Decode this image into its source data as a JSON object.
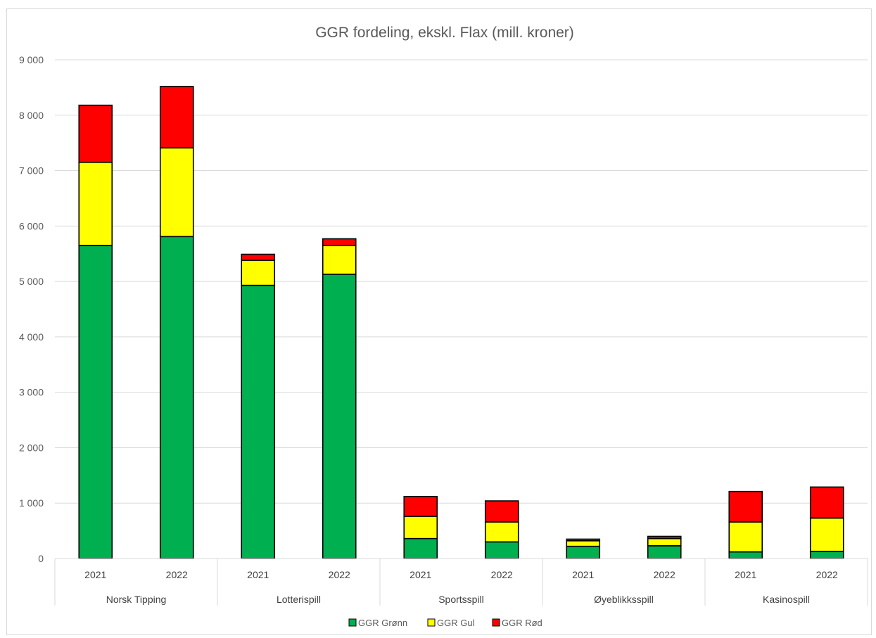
{
  "chart_data": {
    "type": "bar",
    "stacked": true,
    "title": "GGR fordeling, ekskl. Flax (mill. kroner)",
    "xlabel": "",
    "ylabel": "",
    "ylim": [
      0,
      9000
    ],
    "yticks": [
      "0",
      "1 000",
      "2 000",
      "3 000",
      "4 000",
      "5 000",
      "6 000",
      "7 000",
      "8 000",
      "9 000"
    ],
    "grid": true,
    "legend_position": "bottom",
    "groups": [
      "Norsk Tipping",
      "Lotterispill",
      "Sportsspill",
      "Øyeblikksspill",
      "Kasinospill"
    ],
    "categories": [
      "2021",
      "2022",
      "2021",
      "2022",
      "2021",
      "2022",
      "2021",
      "2022",
      "2021",
      "2022"
    ],
    "series": [
      {
        "name": "GGR Grønn",
        "color": "#00b050",
        "values": [
          5650,
          5810,
          4930,
          5130,
          360,
          300,
          220,
          230,
          120,
          130
        ]
      },
      {
        "name": "GGR Gul",
        "color": "#ffff00",
        "values": [
          1500,
          1600,
          450,
          520,
          400,
          360,
          100,
          130,
          540,
          600
        ]
      },
      {
        "name": "GGR Rød",
        "color": "#ff0000",
        "values": [
          1030,
          1110,
          110,
          120,
          360,
          380,
          30,
          40,
          550,
          560
        ]
      }
    ]
  }
}
